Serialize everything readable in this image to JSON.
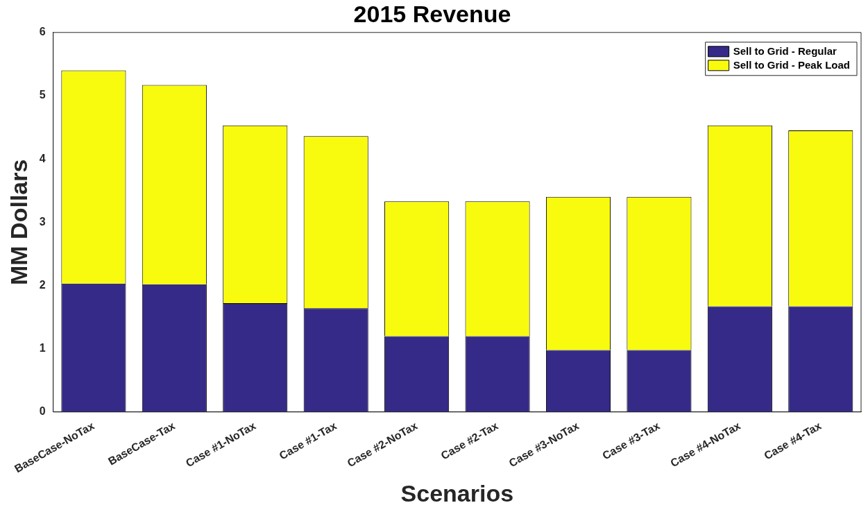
{
  "chart_data": {
    "type": "bar",
    "title": "2015 Revenue",
    "xlabel": "Scenarios",
    "ylabel": "MM Dollars",
    "categories": [
      "BaseCase-NoTax",
      "BaseCase-Tax",
      "Case #1-NoTax",
      "Case #1-Tax",
      "Case #2-NoTax",
      "Case #2-Tax",
      "Case #3-NoTax",
      "Case #3-Tax",
      "Case #4-NoTax",
      "Case #4-Tax"
    ],
    "series": [
      {
        "name": "Sell to Grid - Regular",
        "color": "#352a87",
        "values": [
          2.03,
          2.02,
          1.72,
          1.64,
          1.2,
          1.2,
          0.98,
          0.98,
          1.67,
          1.67
        ]
      },
      {
        "name": "Sell to Grid - Peak Load",
        "color": "#f9fb0e",
        "values": [
          3.37,
          3.15,
          2.81,
          2.72,
          2.13,
          2.13,
          2.42,
          2.42,
          2.86,
          2.78
        ]
      }
    ],
    "stacked": true,
    "ylim": [
      0,
      6
    ],
    "yticks": [
      0,
      1,
      2,
      3,
      4,
      5,
      6
    ],
    "grid": false,
    "legend": "top right"
  }
}
